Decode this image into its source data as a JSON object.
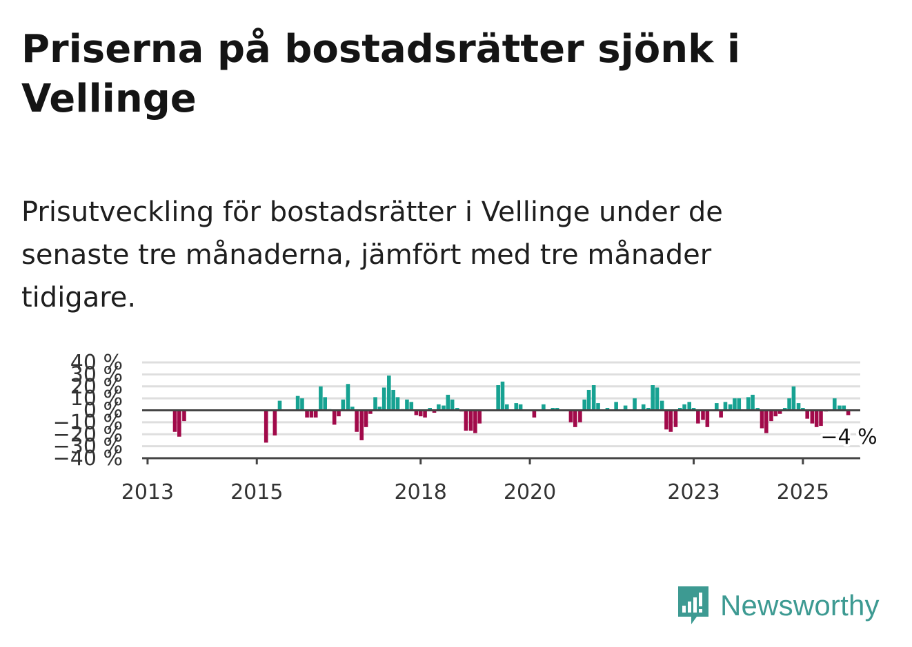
{
  "title": "Priserna på bostadsrätter sjönk i Vellinge",
  "subtitle": "Prisutveckling för bostadsrätter i Vellinge under de senaste tre månaderna, jämfört med tre månader tidigare.",
  "brand": {
    "name": "Newsworthy",
    "icon": "newsworthy-logo-icon",
    "color": "#3d9a92"
  },
  "chart_data": {
    "type": "bar",
    "x_unit": "year",
    "xlim": [
      2012.9,
      2026.05
    ],
    "ylim": [
      -40,
      40
    ],
    "yticks": [
      {
        "value": 40,
        "label": "40 %"
      },
      {
        "value": 30,
        "label": "30 %"
      },
      {
        "value": 20,
        "label": "20 %"
      },
      {
        "value": 10,
        "label": "10 %"
      },
      {
        "value": 0,
        "label": "0 %"
      },
      {
        "value": -10,
        "label": "−10 %"
      },
      {
        "value": -20,
        "label": "−20 %"
      },
      {
        "value": -30,
        "label": "−30 %"
      },
      {
        "value": -40,
        "label": "−40 %"
      }
    ],
    "xticks": [
      {
        "value": 2013,
        "label": "2013"
      },
      {
        "value": 2015,
        "label": "2015"
      },
      {
        "value": 2018,
        "label": "2018"
      },
      {
        "value": 2020,
        "label": "2020"
      },
      {
        "value": 2023,
        "label": "2023"
      },
      {
        "value": 2025,
        "label": "2025"
      }
    ],
    "grid": true,
    "colors": {
      "positive": "#17a292",
      "negative": "#a10a4a",
      "grid": "#dedede",
      "axis": "#444444"
    },
    "last_value_label": "−4 %",
    "points": [
      [
        2013.5,
        -18
      ],
      [
        2013.58,
        -22
      ],
      [
        2013.67,
        -9
      ],
      [
        2015.17,
        -27
      ],
      [
        2015.33,
        -21
      ],
      [
        2015.42,
        8
      ],
      [
        2015.75,
        12
      ],
      [
        2015.83,
        10
      ],
      [
        2015.92,
        -6
      ],
      [
        2016.0,
        -6
      ],
      [
        2016.08,
        -6
      ],
      [
        2016.17,
        20
      ],
      [
        2016.25,
        11
      ],
      [
        2016.33,
        1
      ],
      [
        2016.42,
        -12
      ],
      [
        2016.5,
        -5
      ],
      [
        2016.58,
        9
      ],
      [
        2016.67,
        22
      ],
      [
        2016.75,
        3
      ],
      [
        2016.83,
        -18
      ],
      [
        2016.92,
        -25
      ],
      [
        2017.0,
        -14
      ],
      [
        2017.08,
        -3
      ],
      [
        2017.17,
        11
      ],
      [
        2017.25,
        3
      ],
      [
        2017.33,
        19
      ],
      [
        2017.42,
        29
      ],
      [
        2017.5,
        17
      ],
      [
        2017.58,
        11
      ],
      [
        2017.67,
        1
      ],
      [
        2017.75,
        9
      ],
      [
        2017.83,
        7
      ],
      [
        2017.92,
        -4
      ],
      [
        2018.0,
        -5
      ],
      [
        2018.08,
        -6
      ],
      [
        2018.17,
        2
      ],
      [
        2018.25,
        -2
      ],
      [
        2018.33,
        5
      ],
      [
        2018.42,
        4
      ],
      [
        2018.5,
        13
      ],
      [
        2018.58,
        9
      ],
      [
        2018.67,
        2
      ],
      [
        2018.75,
        -1
      ],
      [
        2018.83,
        -17
      ],
      [
        2018.92,
        -17
      ],
      [
        2019.0,
        -19
      ],
      [
        2019.08,
        -11
      ],
      [
        2019.42,
        21
      ],
      [
        2019.5,
        24
      ],
      [
        2019.58,
        5
      ],
      [
        2019.75,
        6
      ],
      [
        2019.83,
        5
      ],
      [
        2020.08,
        -6
      ],
      [
        2020.25,
        5
      ],
      [
        2020.42,
        2
      ],
      [
        2020.5,
        2
      ],
      [
        2020.75,
        -10
      ],
      [
        2020.83,
        -14
      ],
      [
        2020.92,
        -10
      ],
      [
        2021.0,
        9
      ],
      [
        2021.08,
        17
      ],
      [
        2021.17,
        21
      ],
      [
        2021.25,
        6
      ],
      [
        2021.42,
        2
      ],
      [
        2021.58,
        7
      ],
      [
        2021.75,
        4
      ],
      [
        2021.92,
        10
      ],
      [
        2022.08,
        5
      ],
      [
        2022.17,
        2
      ],
      [
        2022.25,
        21
      ],
      [
        2022.33,
        19
      ],
      [
        2022.42,
        8
      ],
      [
        2022.5,
        -16
      ],
      [
        2022.58,
        -18
      ],
      [
        2022.67,
        -14
      ],
      [
        2022.75,
        2
      ],
      [
        2022.83,
        5
      ],
      [
        2022.92,
        7
      ],
      [
        2023.0,
        2
      ],
      [
        2023.08,
        -11
      ],
      [
        2023.17,
        -8
      ],
      [
        2023.25,
        -14
      ],
      [
        2023.42,
        6
      ],
      [
        2023.5,
        -6
      ],
      [
        2023.58,
        7
      ],
      [
        2023.67,
        5
      ],
      [
        2023.75,
        10
      ],
      [
        2023.83,
        10
      ],
      [
        2024.0,
        11
      ],
      [
        2024.08,
        13
      ],
      [
        2024.17,
        2
      ],
      [
        2024.25,
        -15
      ],
      [
        2024.33,
        -19
      ],
      [
        2024.42,
        -9
      ],
      [
        2024.5,
        -5
      ],
      [
        2024.58,
        -3
      ],
      [
        2024.67,
        2
      ],
      [
        2024.75,
        10
      ],
      [
        2024.83,
        20
      ],
      [
        2024.92,
        6
      ],
      [
        2025.0,
        2
      ],
      [
        2025.08,
        -7
      ],
      [
        2025.17,
        -11
      ],
      [
        2025.25,
        -14
      ],
      [
        2025.33,
        -13
      ],
      [
        2025.42,
        -1
      ],
      [
        2025.58,
        10
      ],
      [
        2025.67,
        4
      ],
      [
        2025.75,
        4
      ],
      [
        2025.83,
        -4
      ]
    ]
  }
}
